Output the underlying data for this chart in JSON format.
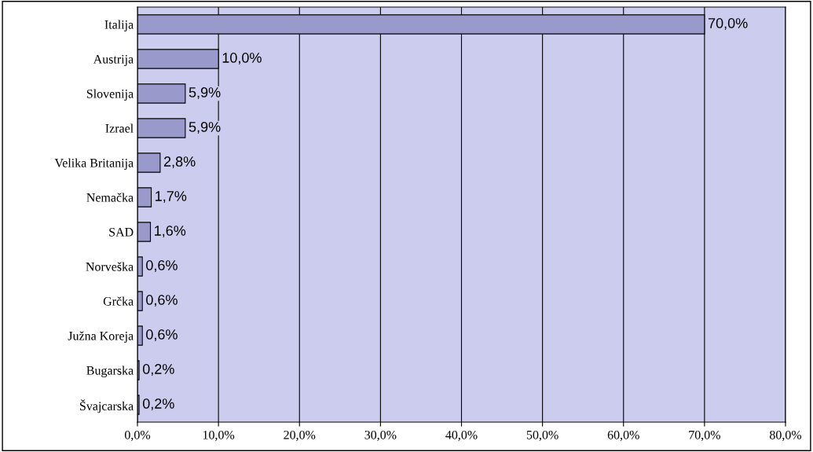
{
  "chart_data": {
    "type": "bar",
    "orientation": "horizontal",
    "categories": [
      "Italija",
      "Austrija",
      "Slovenija",
      "Izrael",
      "Velika Britanija",
      "Nemačka",
      "SAD",
      "Norveška",
      "Grčka",
      "Južna Koreja",
      "Bugarska",
      "Švajcarska"
    ],
    "values": [
      70.0,
      10.0,
      5.9,
      5.9,
      2.8,
      1.7,
      1.6,
      0.6,
      0.6,
      0.6,
      0.2,
      0.2
    ],
    "value_labels": [
      "70,0%",
      "10,0%",
      "5,9%",
      "5,9%",
      "2,8%",
      "1,7%",
      "1,6%",
      "0,6%",
      "0,6%",
      "0,6%",
      "0,2%",
      "0,2%"
    ],
    "color": "#9999cc",
    "xlim": [
      0,
      80
    ],
    "xticks": [
      {
        "value": 0,
        "label": "0,0%"
      },
      {
        "value": 10,
        "label": "10,0%"
      },
      {
        "value": 20,
        "label": "20,0%"
      },
      {
        "value": 30,
        "label": "30,0%"
      },
      {
        "value": 40,
        "label": "40,0%"
      },
      {
        "value": 50,
        "label": "50,0%"
      },
      {
        "value": 60,
        "label": "60,0%"
      },
      {
        "value": 70,
        "label": "70,0%"
      },
      {
        "value": 80,
        "label": "80,0%"
      }
    ],
    "grid": "x",
    "legend": false
  }
}
